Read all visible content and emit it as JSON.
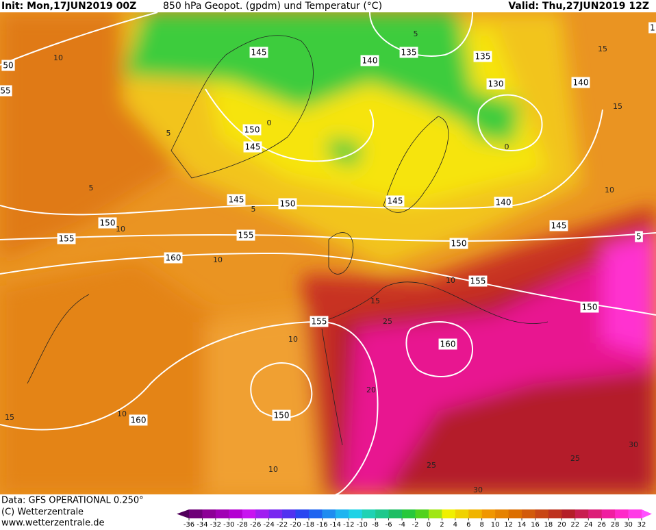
{
  "header": {
    "init": "Init: Mon,17JUN2019 00Z",
    "title": "850 hPa Geopot. (gpdm) und Temperatur (°C)",
    "valid": "Valid: Thu,27JUN2019 12Z"
  },
  "map": {
    "geopotential_labels": [
      145,
      140,
      135,
      135,
      130,
      140,
      150,
      145,
      145,
      150,
      145,
      140,
      145,
      150,
      155,
      155,
      150,
      160,
      155,
      150,
      155,
      160,
      150,
      160,
      50,
      55,
      1,
      5
    ],
    "temperature_labels": [
      10,
      5,
      5,
      10,
      10,
      15,
      15,
      10,
      10,
      15,
      25,
      20,
      25,
      30,
      30,
      25,
      10,
      10,
      15,
      10,
      5,
      0,
      5,
      0
    ]
  },
  "footer": {
    "source": "Data: GFS OPERATIONAL 0.250°",
    "copyright": "(C) Wetterzentrale",
    "url": "www.wetterzentrale.de"
  },
  "colorbar": {
    "ticks": [
      -36,
      -34,
      -32,
      -30,
      -28,
      -26,
      -24,
      -22,
      -20,
      -18,
      -16,
      -14,
      -12,
      -10,
      -8,
      -6,
      -4,
      -2,
      0,
      2,
      4,
      6,
      8,
      10,
      12,
      14,
      16,
      18,
      20,
      22,
      24,
      26,
      28,
      30,
      32
    ],
    "colors": [
      "#50005a",
      "#6e0078",
      "#8c0096",
      "#a000b4",
      "#b400d2",
      "#c814f0",
      "#a01ef0",
      "#7828f0",
      "#5032f0",
      "#2846f0",
      "#1e64f0",
      "#1e8cf0",
      "#1eb4f0",
      "#1ed2e6",
      "#1ed2b4",
      "#1ec88c",
      "#1ebe64",
      "#28c83c",
      "#50d21e",
      "#a0e614",
      "#f0f000",
      "#f0d200",
      "#f0b400",
      "#f09600",
      "#e68200",
      "#dc6e00",
      "#d25a0a",
      "#c84614",
      "#be321e",
      "#b41e28",
      "#c81e50",
      "#dc1e78",
      "#f01ea0",
      "#ff28c8",
      "#ff3ce6",
      "#ff50ff"
    ]
  }
}
